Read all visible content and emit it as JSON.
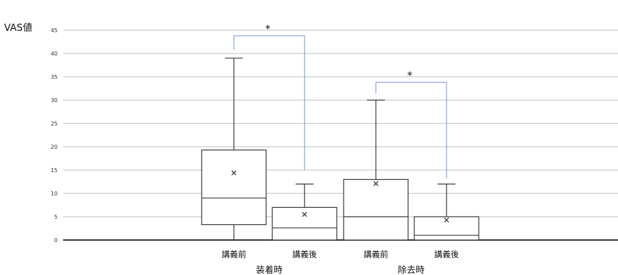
{
  "chart_data": {
    "type": "box",
    "ylabel": "VAS値",
    "ylim": [
      0,
      45
    ],
    "yticks": [
      0,
      5,
      10,
      15,
      20,
      25,
      30,
      35,
      40,
      45
    ],
    "grid": true,
    "groups": [
      {
        "label": "装着時",
        "categories": [
          "講義前",
          "講義後"
        ]
      },
      {
        "label": "除去時",
        "categories": [
          "講義前",
          "講義後"
        ]
      }
    ],
    "boxes": [
      {
        "group": "装着時",
        "category": "講義前",
        "min": 0,
        "q1": 3.3,
        "median": 9,
        "q3": 19.3,
        "max": 39,
        "mean": 14.4
      },
      {
        "group": "装着時",
        "category": "講義後",
        "min": 0,
        "q1": 0,
        "median": 2.6,
        "q3": 7,
        "max": 12,
        "mean": 5.5
      },
      {
        "group": "除去時",
        "category": "講義前",
        "min": 0,
        "q1": 0,
        "median": 5,
        "q3": 13,
        "max": 30,
        "mean": 12.1
      },
      {
        "group": "除去時",
        "category": "講義後",
        "min": 0,
        "q1": 0,
        "median": 1,
        "q3": 5,
        "max": 12,
        "mean": 4.3
      }
    ],
    "significance": [
      {
        "between": [
          0,
          1
        ],
        "label": "*"
      },
      {
        "between": [
          2,
          3
        ],
        "label": "*"
      }
    ]
  }
}
